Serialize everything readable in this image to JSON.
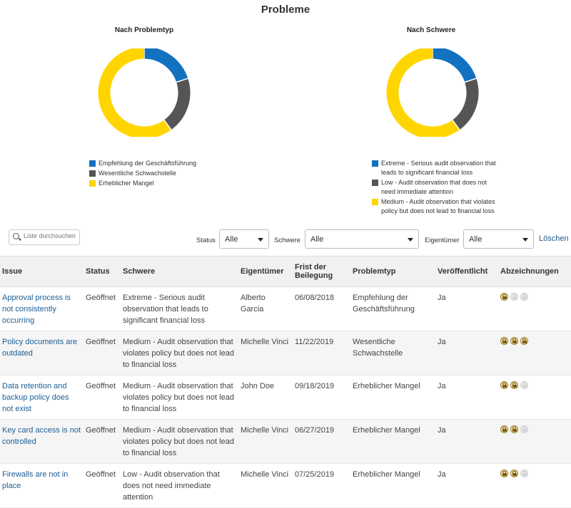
{
  "page_title": "Probleme",
  "charts": [
    {
      "title": "Nach Problemtyp",
      "chart_data": {
        "type": "pie",
        "categories": [
          "Empfehlung der Geschäftsführung",
          "Wesentliche Schwachstelle",
          "Erheblicher Mangel"
        ],
        "values": [
          1,
          1,
          3
        ],
        "colors": [
          "#1272c0",
          "#555555",
          "#ffd500"
        ]
      }
    },
    {
      "title": "Nach Schwere",
      "chart_data": {
        "type": "pie",
        "categories": [
          "Extreme - Serious audit observation that leads to significant financial loss",
          "Low - Audit observation that does not need immediate attention",
          "Medium - Audit observation that violates policy but does not lead to financial loss"
        ],
        "values": [
          1,
          1,
          3
        ],
        "colors": [
          "#1272c0",
          "#555555",
          "#ffd500"
        ]
      }
    }
  ],
  "filters": {
    "search_placeholder": "Liste durchsuchen",
    "status_label": "Status",
    "status_value": "Alle",
    "severity_label": "Schwere",
    "severity_value": "Alle",
    "owner_label": "Eigentümer",
    "owner_value": "Alle",
    "clear_label": "Löschen"
  },
  "table": {
    "headers": [
      "Issue",
      "Status",
      "Schwere",
      "Eigentümer",
      "Frist der Beilegung",
      "Problemtyp",
      "Veröffentlicht",
      "Abzeichnungen"
    ],
    "rows": [
      {
        "issue": "Approval process is not consistently occurring",
        "status": "Geöffnet",
        "severity": "Extreme - Serious audit observation that leads to significant financial loss",
        "owner": "Alberto Garcia",
        "due": "06/08/2018",
        "type": "Empfehlung der Geschäftsführung",
        "published": "Ja",
        "signoffs": [
          true,
          false,
          false
        ]
      },
      {
        "issue": "Policy documents are outdated",
        "status": "Geöffnet",
        "severity": "Medium - Audit observation that violates policy but does not lead to financial loss",
        "owner": "Michelle Vinci",
        "due": "11/22/2019",
        "type": "Wesentliche Schwachstelle",
        "published": "Ja",
        "signoffs": [
          true,
          true,
          true
        ]
      },
      {
        "issue": "Data retention and backup policy does not exist",
        "status": "Geöffnet",
        "severity": "Medium - Audit observation that violates policy but does not lead to financial loss",
        "owner": "John Doe",
        "due": "09/18/2019",
        "type": "Erheblicher Mangel",
        "published": "Ja",
        "signoffs": [
          true,
          true,
          false
        ]
      },
      {
        "issue": "Key card access is not controlled",
        "status": "Geöffnet",
        "severity": "Medium - Audit observation that violates policy but does not lead to financial loss",
        "owner": "Michelle Vinci",
        "due": "06/27/2019",
        "type": "Erheblicher Mangel",
        "published": "Ja",
        "signoffs": [
          true,
          true,
          false
        ]
      },
      {
        "issue": "Firewalls are not in place",
        "status": "Geöffnet",
        "severity": "Low - Audit observation that does not need immediate attention",
        "owner": "Michelle Vinci",
        "due": "07/25/2019",
        "type": "Erheblicher Mangel",
        "published": "Ja",
        "signoffs": [
          true,
          true,
          false
        ]
      }
    ]
  }
}
